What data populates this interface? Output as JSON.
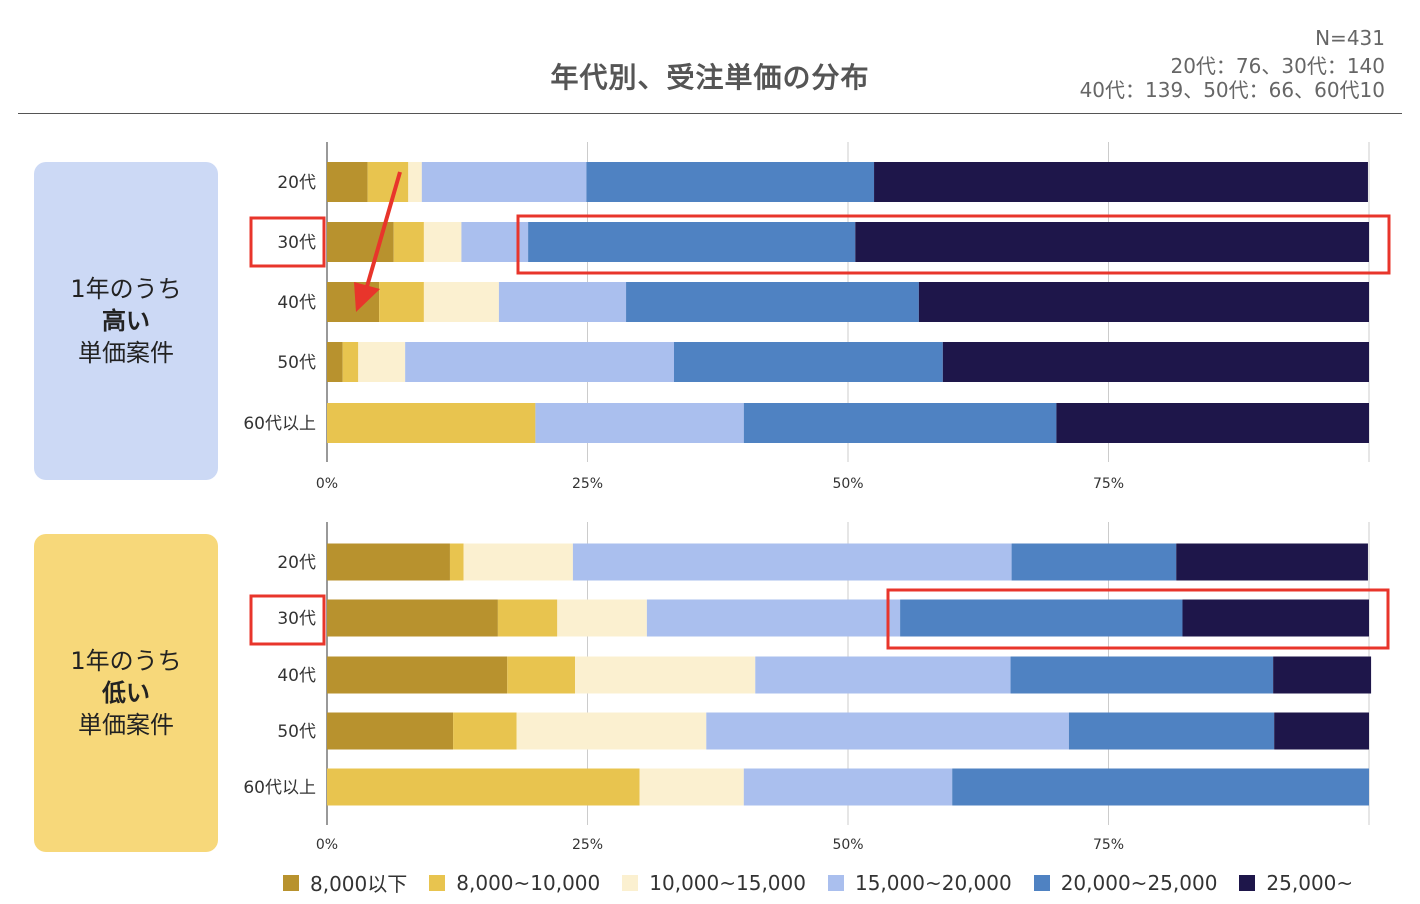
{
  "title": "年代別、受注単価の分布",
  "notes": [
    "N=431",
    "20代：76、30代：140",
    "40代：139、50代：66、60代10"
  ],
  "panels": [
    {
      "line1": "1年のうち",
      "line2": "高い",
      "line3": "単価案件",
      "color": "#CCD9F5"
    },
    {
      "line1": "1年のうち",
      "line2": "低い",
      "line3": "単価案件",
      "color": "#F7D87A"
    }
  ],
  "chart_data": [
    {
      "type": "bar",
      "orientation": "horizontal",
      "stacked": "100%",
      "categories": [
        "20代",
        "30代",
        "40代",
        "50代",
        "60代以上"
      ],
      "xlim": [
        0,
        100
      ],
      "xticks": [
        "0%",
        "25%",
        "50%",
        "75%"
      ],
      "grid": true,
      "series": [
        {
          "name": "8,000以下",
          "values": [
            3.9,
            6.4,
            5.0,
            1.5,
            0
          ]
        },
        {
          "name": "8,000~10,000",
          "values": [
            3.9,
            2.9,
            4.3,
            1.5,
            20
          ]
        },
        {
          "name": "10,000~15,000",
          "values": [
            1.3,
            3.6,
            7.2,
            4.5,
            0
          ]
        },
        {
          "name": "15,000~20,000",
          "values": [
            15.8,
            6.4,
            12.2,
            25.8,
            20
          ]
        },
        {
          "name": "20,000~25,000",
          "values": [
            27.6,
            31.4,
            28.1,
            25.8,
            30
          ]
        },
        {
          "name": "25,000~",
          "values": [
            47.4,
            49.3,
            43.2,
            40.9,
            30
          ]
        }
      ]
    },
    {
      "type": "bar",
      "orientation": "horizontal",
      "stacked": "100%",
      "categories": [
        "20代",
        "30代",
        "40代",
        "50代",
        "60代以上"
      ],
      "xlim": [
        0,
        100
      ],
      "xticks": [
        "0%",
        "25%",
        "50%",
        "75%"
      ],
      "grid": true,
      "series": [
        {
          "name": "8,000以下",
          "values": [
            11.8,
            16.4,
            17.3,
            12.1,
            0
          ]
        },
        {
          "name": "8,000~10,000",
          "values": [
            1.3,
            5.7,
            6.5,
            6.1,
            30
          ]
        },
        {
          "name": "10,000~15,000",
          "values": [
            10.5,
            8.6,
            17.3,
            18.2,
            10
          ]
        },
        {
          "name": "15,000~20,000",
          "values": [
            42.1,
            24.3,
            24.5,
            34.8,
            20
          ]
        },
        {
          "name": "20,000~25,000",
          "values": [
            15.8,
            27.1,
            25.2,
            19.7,
            40
          ]
        },
        {
          "name": "25,000~",
          "values": [
            18.4,
            17.9,
            9.4,
            9.1,
            0
          ]
        }
      ]
    }
  ],
  "colors": [
    "#B8922E",
    "#E8C44F",
    "#FBF0D0",
    "#AABFEE",
    "#4F82C2",
    "#1E164A"
  ],
  "annotation_color": "#E8352B",
  "legend": [
    "8,000以下",
    "8,000~10,000",
    "10,000~15,000",
    "15,000~20,000",
    "20,000~25,000",
    "25,000~"
  ]
}
